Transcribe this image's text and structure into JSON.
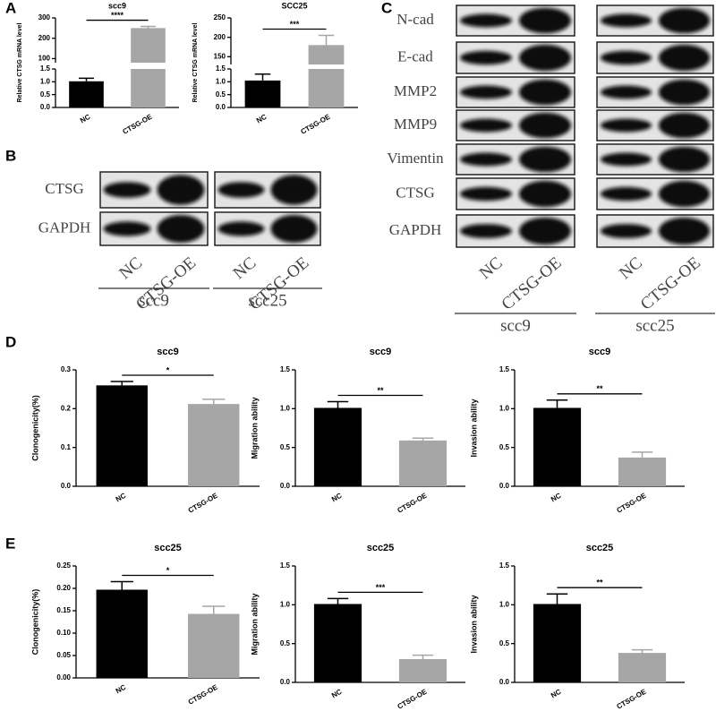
{
  "panel_labels": [
    "A",
    "B",
    "C",
    "D",
    "E"
  ],
  "blot_b": {
    "rows": [
      "CTSG",
      "GAPDH"
    ],
    "lanes": [
      "NC",
      "CTSG-OE"
    ],
    "groups": [
      "scc9",
      "scc25"
    ]
  },
  "blot_c": {
    "rows": [
      "N-cad",
      "E-cad",
      "MMP2",
      "MMP9",
      "Vimentin",
      "CTSG",
      "GAPDH"
    ],
    "lanes": [
      "NC",
      "CTSG-OE"
    ],
    "groups": [
      "scc9",
      "scc25"
    ]
  },
  "chart_data": [
    {
      "type": "bar",
      "title": "scc9",
      "y_label": "Relative CTSG mRNA level",
      "categories": [
        "NC",
        "CTSG-OE"
      ],
      "values": [
        1.02,
        250
      ],
      "errors": [
        0.12,
        8
      ],
      "colors": [
        "#000000",
        "#a6a6a6"
      ],
      "significance": "****",
      "ylim": [
        0,
        1.5
      ],
      "yticks": [
        {
          "value": 0,
          "label": "0.0"
        },
        0.5,
        {
          "value": 1,
          "label": "1.0"
        },
        1.5
      ],
      "y_break": {
        "ylim": [
          80,
          300
        ],
        "yticks": [
          100,
          200,
          300
        ]
      }
    },
    {
      "type": "bar",
      "title": "SCC25",
      "y_label": "Relative CTSG mRNA level",
      "categories": [
        "NC",
        "CTSG-OE"
      ],
      "values": [
        1.05,
        180
      ],
      "errors": [
        0.25,
        25
      ],
      "colors": [
        "#000000",
        "#a6a6a6"
      ],
      "significance": "***",
      "ylim": [
        0,
        1.5
      ],
      "yticks": [
        {
          "value": 0,
          "label": "0.0"
        },
        0.5,
        {
          "value": 1,
          "label": "1.0"
        },
        1.5
      ],
      "y_break": {
        "ylim": [
          130,
          250
        ],
        "yticks": [
          150,
          200,
          250
        ]
      }
    },
    {
      "type": "bar",
      "title": "scc9",
      "y_label": "Clonogenicity(%)",
      "categories": [
        "NC",
        "CTSG-OE"
      ],
      "values": [
        0.26,
        0.212
      ],
      "errors": [
        0.01,
        0.012
      ],
      "colors": [
        "#000000",
        "#a6a6a6"
      ],
      "significance": "*",
      "ylim": [
        0,
        0.3
      ],
      "yticks": [
        {
          "value": 0,
          "label": "0.0"
        },
        0.1,
        0.2,
        0.3
      ]
    },
    {
      "type": "bar",
      "title": "scc9",
      "y_label": "Migration ability",
      "categories": [
        "NC",
        "CTSG-OE"
      ],
      "values": [
        1.01,
        0.59
      ],
      "errors": [
        0.08,
        0.03
      ],
      "colors": [
        "#000000",
        "#a6a6a6"
      ],
      "significance": "**",
      "ylim": [
        0,
        1.5
      ],
      "yticks": [
        {
          "value": 0,
          "label": "0.0"
        },
        0.5,
        {
          "value": 1,
          "label": "1.0"
        },
        1.5
      ]
    },
    {
      "type": "bar",
      "title": "scc9",
      "y_label": "Invasion ability",
      "categories": [
        "NC",
        "CTSG-OE"
      ],
      "values": [
        1.01,
        0.37
      ],
      "errors": [
        0.1,
        0.07
      ],
      "colors": [
        "#000000",
        "#a6a6a6"
      ],
      "significance": "**",
      "ylim": [
        0,
        1.5
      ],
      "yticks": [
        {
          "value": 0,
          "label": "0.0"
        },
        0.5,
        {
          "value": 1,
          "label": "1.0"
        },
        1.5
      ]
    },
    {
      "type": "bar",
      "title": "scc25",
      "y_label": "Clonogenicity(%)",
      "categories": [
        "NC",
        "CTSG-OE"
      ],
      "values": [
        0.197,
        0.143
      ],
      "errors": [
        0.018,
        0.017
      ],
      "colors": [
        "#000000",
        "#a6a6a6"
      ],
      "significance": "*",
      "ylim": [
        0,
        0.25
      ],
      "yticks": [
        {
          "value": 0,
          "label": "0.00"
        },
        0.05,
        {
          "value": 0.1,
          "label": "0.10"
        },
        0.15,
        {
          "value": 0.2,
          "label": "0.20"
        },
        0.25
      ]
    },
    {
      "type": "bar",
      "title": "scc25",
      "y_label": "Migration ability",
      "categories": [
        "NC",
        "CTSG-OE"
      ],
      "values": [
        1.01,
        0.3
      ],
      "errors": [
        0.07,
        0.05
      ],
      "colors": [
        "#000000",
        "#a6a6a6"
      ],
      "significance": "***",
      "ylim": [
        0,
        1.5
      ],
      "yticks": [
        {
          "value": 0,
          "label": "0.0"
        },
        0.5,
        {
          "value": 1,
          "label": "1.0"
        },
        1.5
      ]
    },
    {
      "type": "bar",
      "title": "scc25",
      "y_label": "Invasion ability",
      "categories": [
        "NC",
        "CTSG-OE"
      ],
      "values": [
        1.01,
        0.38
      ],
      "errors": [
        0.13,
        0.04
      ],
      "colors": [
        "#000000",
        "#a6a6a6"
      ],
      "significance": "**",
      "ylim": [
        0,
        1.5
      ],
      "yticks": [
        {
          "value": 0,
          "label": "0.0"
        },
        0.5,
        {
          "value": 1,
          "label": "1.0"
        },
        1.5
      ]
    }
  ]
}
